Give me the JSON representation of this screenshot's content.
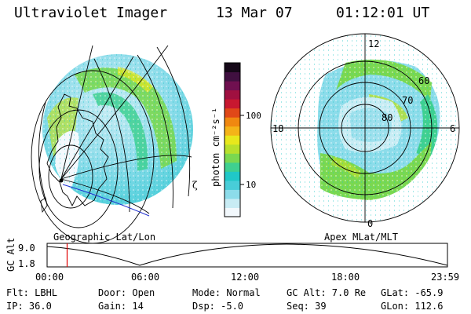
{
  "header": {
    "instrument": "Ultraviolet Imager",
    "date": "13 Mar 07",
    "time": "01:12:01 UT"
  },
  "left_panel": {
    "caption": "Geographic Lat/Lon",
    "edge_mark": "ζ"
  },
  "right_panel": {
    "caption": "Apex MLat/MLT",
    "mlt_labels": {
      "top": "12",
      "left": "18",
      "right": "6",
      "bottom": "0"
    },
    "lat_labels": [
      "60",
      "70",
      "80"
    ]
  },
  "colorbar": {
    "unit_label": "photon cm⁻²s⁻¹",
    "ticks": [
      "100",
      "10"
    ],
    "colors": [
      "#f2f8fc",
      "#c8ecf4",
      "#8cdcea",
      "#48cdd8",
      "#20c8c8",
      "#3fd090",
      "#7ad850",
      "#b8e02c",
      "#e8e81c",
      "#f4b418",
      "#f08810",
      "#e04818",
      "#c81830",
      "#a01040",
      "#701050",
      "#401040",
      "#150818"
    ]
  },
  "timeline": {
    "axis_label": "GC Alt",
    "ymax": "9.0",
    "ymin": "1.8",
    "ticks": [
      "00:00",
      "06:00",
      "12:00",
      "18:00",
      "23:59"
    ],
    "marker_time_hours": 1.2
  },
  "info": {
    "filter_label": "Flt: LBHL",
    "ip_label": "IP: 36.0",
    "door_label": "Door: Open",
    "gain_label": "Gain: 14",
    "mode_label": "Mode: Normal",
    "dsp_label": "Dsp:   -5.0",
    "gcalt_label": "GC Alt: 7.0 Re",
    "seq_label": "Seq: 39",
    "glat_label": "GLat: -65.9",
    "glon_label": "GLon: 112.6"
  }
}
